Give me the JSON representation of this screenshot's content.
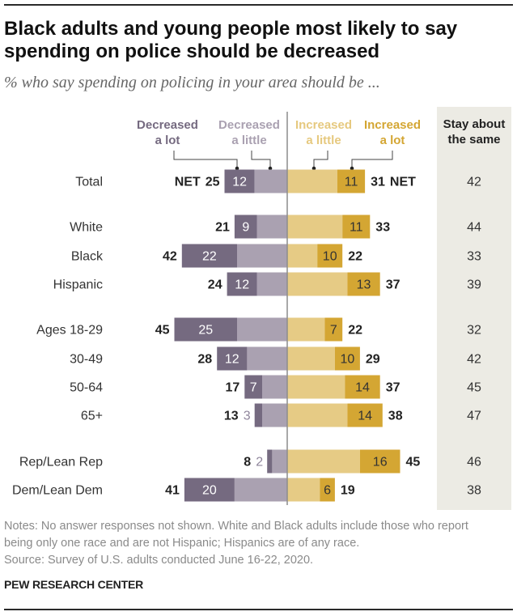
{
  "footer": {
    "notes_lines": [
      "Notes: No answer responses not shown. White and Black adults include those who report",
      "being only one race and are not Hispanic; Hispanics are of any race."
    ],
    "source": "Source: Survey of U.S. adults conducted June 16-22, 2020.",
    "brand": "PEW RESEARCH CENTER"
  },
  "chart_data": {
    "type": "bar",
    "orientation": "horizontal-diverging",
    "title": "Black adults and young people most likely to say spending on police should be decreased",
    "subtitle": "% who say spending on policing in your area should be ...",
    "xlabel": "",
    "ylabel": "",
    "unit": "%",
    "grid": false,
    "legend_placement": "top",
    "categories": [
      "Total",
      "White",
      "Black",
      "Hispanic",
      "Ages 18-29",
      "30-49",
      "50-64",
      "65+",
      "Rep/Lean Rep",
      "Dem/Lean Dem"
    ],
    "legend": [
      {
        "label": "Decreased a lot",
        "lines": [
          "Decreased",
          "a lot"
        ],
        "color": "#756a80"
      },
      {
        "label": "Decreased a little",
        "lines": [
          "Decreased",
          "a little"
        ],
        "color": "#aaa1b1"
      },
      {
        "label": "Increased a little",
        "lines": [
          "Increased",
          "a little"
        ],
        "color": "#e6c97f"
      },
      {
        "label": "Increased a lot",
        "lines": [
          "Increased",
          "a lot"
        ],
        "color": "#d4a633"
      }
    ],
    "stay_header": {
      "label": "Stay about the same",
      "lines": [
        "Stay about",
        "the same"
      ],
      "background": "#ecebe4"
    },
    "net_label": "NET",
    "series": [
      {
        "name": "Decreased a lot",
        "values": [
          12,
          9,
          22,
          12,
          25,
          12,
          7,
          3,
          2,
          20
        ],
        "color": "#756a80"
      },
      {
        "name": "Decreased a little",
        "values": [
          13,
          12,
          20,
          12,
          20,
          16,
          10,
          10,
          6,
          21
        ],
        "color": "#aaa1b1"
      },
      {
        "name": "Increased a little",
        "values": [
          20,
          22,
          12,
          24,
          15,
          19,
          23,
          24,
          29,
          13
        ],
        "color": "#e6cb85"
      },
      {
        "name": "Increased a lot",
        "values": [
          11,
          11,
          10,
          13,
          7,
          10,
          14,
          14,
          16,
          6
        ],
        "color": "#d4a633"
      },
      {
        "name": "Stay about the same",
        "values": [
          42,
          44,
          33,
          39,
          32,
          42,
          45,
          47,
          46,
          38
        ]
      }
    ],
    "net_decreased": [
      25,
      21,
      42,
      24,
      45,
      28,
      17,
      13,
      8,
      41
    ],
    "net_increased": [
      31,
      33,
      22,
      37,
      22,
      29,
      37,
      38,
      45,
      19
    ]
  }
}
